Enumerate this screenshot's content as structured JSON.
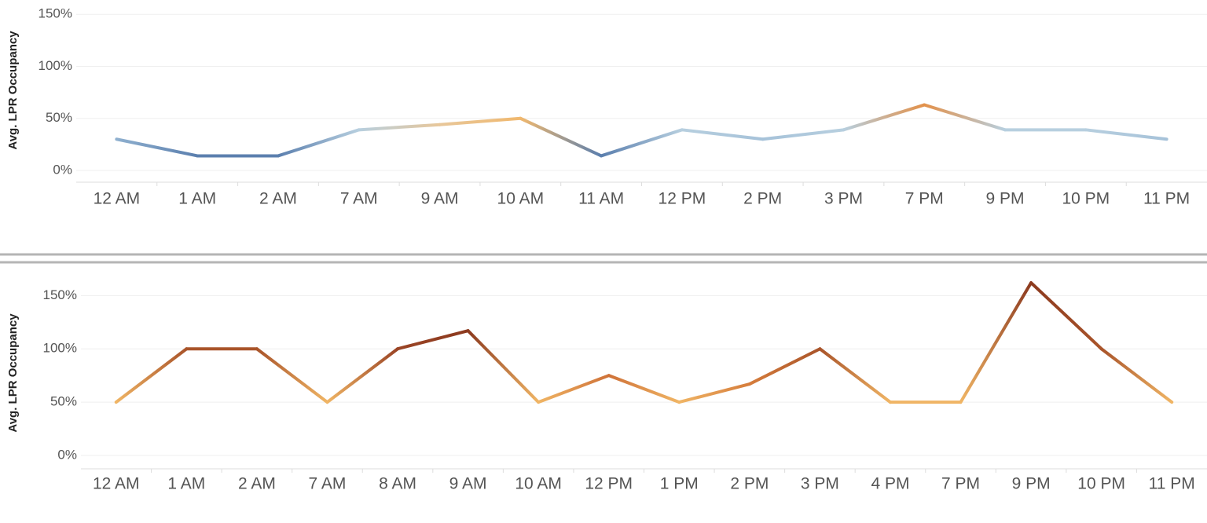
{
  "chart_data": [
    {
      "type": "line",
      "y_label": "Avg. LPR Occupancy",
      "categories": [
        "12 AM",
        "1 AM",
        "2 AM",
        "7 AM",
        "9 AM",
        "10 AM",
        "11 AM",
        "12 PM",
        "2 PM",
        "3 PM",
        "7 PM",
        "9 PM",
        "10 PM",
        "11 PM"
      ],
      "values": [
        30,
        14,
        14,
        39,
        44,
        50,
        14,
        39,
        30,
        39,
        63,
        39,
        39,
        30
      ],
      "colors": [
        "#8fb0cf",
        "#5b7fae",
        "#5b7fae",
        "#b7cfdf",
        "#e8c79a",
        "#f0b86e",
        "#5b7fae",
        "#b7cfdf",
        "#a6c2d9",
        "#b7cfdf",
        "#e3914a",
        "#b7cfdf",
        "#b7cfdf",
        "#a6c2d9"
      ],
      "ylim": [
        0,
        160
      ],
      "yticks": [
        {
          "value": 0,
          "label": "0%"
        },
        {
          "value": 50,
          "label": "50%"
        },
        {
          "value": 100,
          "label": "100%"
        },
        {
          "value": 150,
          "label": "150%"
        }
      ],
      "grid": true
    },
    {
      "type": "line",
      "y_label": "Avg. LPR Occupancy",
      "categories": [
        "12 AM",
        "1 AM",
        "2 AM",
        "7 AM",
        "8 AM",
        "9 AM",
        "10 AM",
        "12 PM",
        "1 PM",
        "2 PM",
        "3 PM",
        "4 PM",
        "7 PM",
        "9 PM",
        "10 PM",
        "11 PM"
      ],
      "values": [
        50,
        100,
        100,
        50,
        100,
        117,
        50,
        75,
        50,
        67,
        100,
        50,
        50,
        162,
        100,
        50
      ],
      "colors": [
        "#f0b565",
        "#a9542a",
        "#a9542a",
        "#f0b565",
        "#9a4425",
        "#8c3a1f",
        "#f0b565",
        "#cf7238",
        "#f0b565",
        "#d67d3c",
        "#a9542a",
        "#f0b565",
        "#f0b565",
        "#8c3a1f",
        "#a9542a",
        "#f0b565"
      ],
      "ylim": [
        0,
        165
      ],
      "yticks": [
        {
          "value": 0,
          "label": "0%"
        },
        {
          "value": 50,
          "label": "50%"
        },
        {
          "value": 100,
          "label": "100%"
        },
        {
          "value": 150,
          "label": "150%"
        }
      ],
      "grid": true
    }
  ]
}
